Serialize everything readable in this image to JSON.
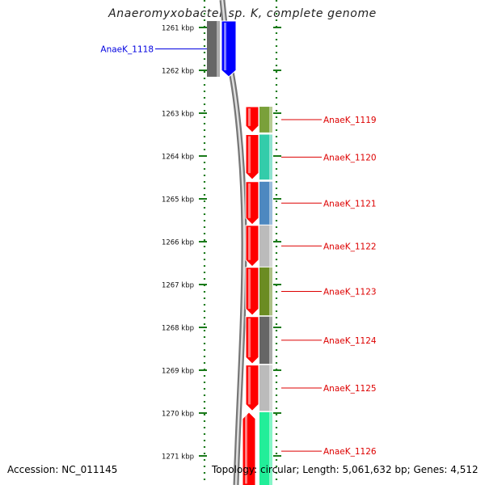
{
  "title": "Anaeromyxobacter sp. K, complete genome",
  "footer": {
    "accession": "Accession: NC_011145",
    "summary": "Topology: circular; Length: 5,061,632 bp; Genes: 4,512"
  },
  "ruler": {
    "unit": "kbp",
    "ticks": [
      1261,
      1262,
      1263,
      1264,
      1265,
      1266,
      1267,
      1268,
      1269,
      1270,
      1271
    ]
  },
  "colors": {
    "highlight_gene": "#0000e0",
    "context_gene": "#dd0000",
    "backbone": "#8a8a8a",
    "tick": "#1a7a1a"
  },
  "genes": [
    {
      "id": "AnaeK_1118",
      "start_kbp": 1260.85,
      "end_kbp": 1262.15,
      "strand": "-",
      "label_color": "#0000e0",
      "body_color": "#0000ff",
      "track_color": "#666666"
    },
    {
      "id": "AnaeK_1119",
      "start_kbp": 1262.85,
      "end_kbp": 1263.45,
      "strand": "-",
      "label_color": "#dd0000",
      "body_color": "#ff0000",
      "track_color": "#7aa03a"
    },
    {
      "id": "AnaeK_1120",
      "start_kbp": 1263.5,
      "end_kbp": 1264.55,
      "strand": "-",
      "label_color": "#dd0000",
      "body_color": "#ff0000",
      "track_color": "#33ccaa"
    },
    {
      "id": "AnaeK_1121",
      "start_kbp": 1264.6,
      "end_kbp": 1265.6,
      "strand": "-",
      "label_color": "#dd0000",
      "body_color": "#ff0000",
      "track_color": "#4d88c0"
    },
    {
      "id": "AnaeK_1122",
      "start_kbp": 1265.62,
      "end_kbp": 1266.58,
      "strand": "-",
      "label_color": "#dd0000",
      "body_color": "#ff0000",
      "track_color": "#bbbbbb"
    },
    {
      "id": "AnaeK_1123",
      "start_kbp": 1266.6,
      "end_kbp": 1267.72,
      "strand": "-",
      "label_color": "#dd0000",
      "body_color": "#ff0000",
      "track_color": "#6b8c22"
    },
    {
      "id": "AnaeK_1124",
      "start_kbp": 1267.75,
      "end_kbp": 1268.85,
      "strand": "-",
      "label_color": "#dd0000",
      "body_color": "#ff0000",
      "track_color": "#666666"
    },
    {
      "id": "AnaeK_1125",
      "start_kbp": 1268.88,
      "end_kbp": 1269.95,
      "strand": "-",
      "label_color": "#dd0000",
      "body_color": "#ff0000",
      "track_color": "#bbbbbb"
    },
    {
      "id": "AnaeK_1126",
      "start_kbp": 1269.98,
      "end_kbp": 1271.8,
      "strand": "+",
      "label_color": "#dd0000",
      "body_color": "#ff0000",
      "track_color": "#22ee99"
    }
  ]
}
